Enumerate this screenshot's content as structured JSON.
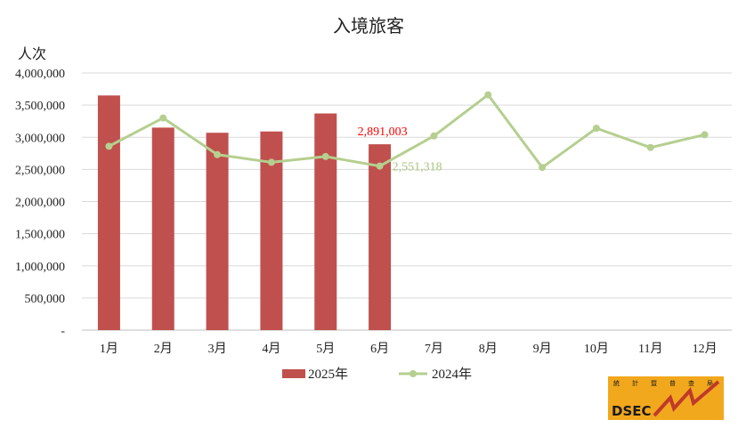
{
  "chart_data": {
    "type": "bar+line",
    "title": "入境旅客",
    "ylabel": "人次",
    "ylim": [
      0,
      4000000
    ],
    "yticks": [
      "-",
      "500,000",
      "1,000,000",
      "1,500,000",
      "2,000,000",
      "2,500,000",
      "3,000,000",
      "3,500,000",
      "4,000,000"
    ],
    "ytick_values": [
      0,
      500000,
      1000000,
      1500000,
      2000000,
      2500000,
      3000000,
      3500000,
      4000000
    ],
    "categories": [
      "1月",
      "2月",
      "3月",
      "4月",
      "5月",
      "6月",
      "7月",
      "8月",
      "9月",
      "10月",
      "11月",
      "12月"
    ],
    "grid": true,
    "legend_position": "bottom",
    "series": [
      {
        "name": "2025年",
        "type": "bar",
        "color": "#c0504d",
        "values": [
          3650000,
          3150000,
          3070000,
          3090000,
          3370000,
          2891003,
          null,
          null,
          null,
          null,
          null,
          null
        ]
      },
      {
        "name": "2024年",
        "type": "line",
        "color": "#b5cf8f",
        "values": [
          2860000,
          3300000,
          2730000,
          2610000,
          2700000,
          2551318,
          3020000,
          3660000,
          2530000,
          3140000,
          2840000,
          3040000
        ]
      }
    ],
    "annotations": [
      {
        "text": "2,891,003",
        "series": 0,
        "index": 5,
        "color": "#ff0000"
      },
      {
        "text": "2,551,318",
        "series": 1,
        "index": 5,
        "color": "#a9c47e"
      }
    ]
  },
  "logo": {
    "text": "DSEC",
    "top_chars": [
      "統",
      "計",
      "暨",
      "普",
      "查",
      "局"
    ],
    "bg_color": "#f2a81d"
  }
}
